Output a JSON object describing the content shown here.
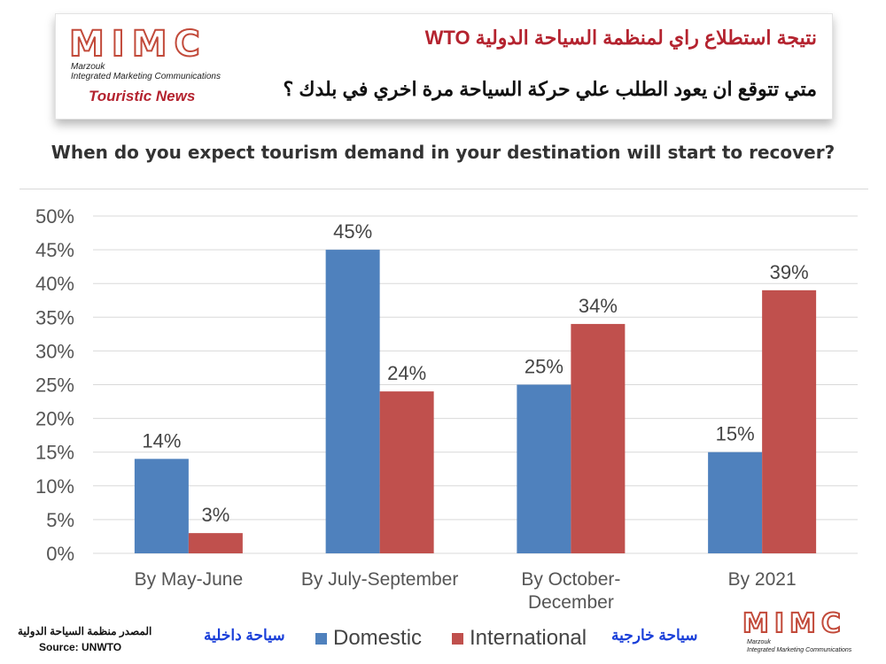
{
  "header": {
    "logo_text": "MIMC",
    "logo_line1": "Marzouk",
    "logo_line2": "Integrated Marketing Communications",
    "tag": "Touristic News",
    "arabic_title": "نتيجة استطلاع راي لمنظمة السياحة الدولية WTO",
    "arabic_question": "متي تتوقع ان يعود الطلب علي حركة السياحة مرة اخري في بلدك ؟"
  },
  "chart_data": {
    "type": "bar",
    "title": "When do you expect tourism demand in your destination will start to recover?",
    "categories": [
      [
        "By May-June"
      ],
      [
        "By July-September"
      ],
      [
        "By October-",
        "December"
      ],
      [
        "By 2021"
      ]
    ],
    "series": [
      {
        "name": "Domestic",
        "values": [
          14,
          45,
          25,
          15
        ],
        "labels": [
          "14%",
          "45%",
          "25%",
          "15%"
        ],
        "color": "#4f81bd"
      },
      {
        "name": "International",
        "values": [
          3,
          24,
          34,
          39
        ],
        "labels": [
          "3%",
          "24%",
          "34%",
          "39%"
        ],
        "color": "#c0504d"
      }
    ],
    "yticks": [
      "0%",
      "5%",
      "10%",
      "15%",
      "20%",
      "25%",
      "30%",
      "35%",
      "40%",
      "45%",
      "50%"
    ],
    "ylim": [
      0,
      50
    ],
    "grid": true,
    "legend_position": "bottom"
  },
  "legend": {
    "domestic_ar": "سياحة داخلية",
    "international_ar": "سياحة خارجية"
  },
  "source": {
    "arabic": "المصدر منظمة السياحة الدولية",
    "english": "Source: UNWTO"
  },
  "colors": {
    "domestic": "#4f81bd",
    "international": "#c0504d",
    "logo_red": "#c24a3a",
    "tag_red": "#b4232f",
    "arabic_blue": "#1a3fd9"
  }
}
